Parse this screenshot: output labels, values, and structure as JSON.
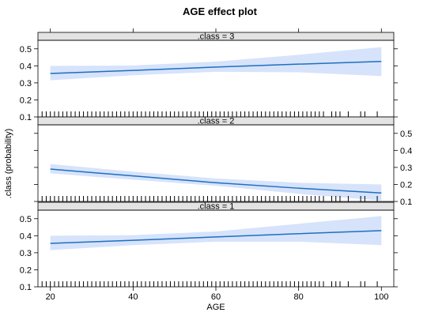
{
  "chart_data": {
    "type": "line",
    "title": "AGE effect plot",
    "xlabel": "AGE",
    "ylabel": ".class (probability)",
    "xlim": [
      17,
      103
    ],
    "xticks": [
      20,
      40,
      60,
      80,
      100
    ],
    "grid": false,
    "panels": [
      {
        "label": ".class = 3",
        "ylim": [
          0.1,
          0.55
        ],
        "yticks": [
          0.1,
          0.2,
          0.3,
          0.4,
          0.5
        ],
        "yaxis_side": "left",
        "x": [
          20,
          40,
          60,
          80,
          100
        ],
        "fit": [
          0.355,
          0.373,
          0.393,
          0.41,
          0.426
        ],
        "lower": [
          0.315,
          0.345,
          0.365,
          0.362,
          0.34
        ],
        "upper": [
          0.4,
          0.402,
          0.425,
          0.465,
          0.51
        ]
      },
      {
        "label": ".class = 2",
        "ylim": [
          0.1,
          0.55
        ],
        "yticks": [
          0.1,
          0.2,
          0.3,
          0.4,
          0.5
        ],
        "yaxis_side": "right",
        "x": [
          20,
          40,
          60,
          80,
          100
        ],
        "fit": [
          0.29,
          0.25,
          0.21,
          0.178,
          0.15
        ],
        "lower": [
          0.265,
          0.228,
          0.192,
          0.145,
          0.105
        ],
        "upper": [
          0.32,
          0.275,
          0.235,
          0.21,
          0.2
        ]
      },
      {
        "label": ".class = 1",
        "ylim": [
          0.1,
          0.55
        ],
        "yticks": [
          0.1,
          0.2,
          0.3,
          0.4,
          0.5
        ],
        "yaxis_side": "left",
        "x": [
          20,
          40,
          60,
          80,
          100
        ],
        "fit": [
          0.355,
          0.373,
          0.393,
          0.412,
          0.43
        ],
        "lower": [
          0.315,
          0.345,
          0.365,
          0.365,
          0.345
        ],
        "upper": [
          0.4,
          0.403,
          0.425,
          0.47,
          0.515
        ]
      }
    ],
    "rug_ages": [
      18,
      19,
      20,
      21,
      22,
      23,
      24,
      25,
      26,
      27,
      28,
      29,
      30,
      31,
      32,
      33,
      34,
      35,
      36,
      37,
      38,
      39,
      40,
      41,
      42,
      43,
      44,
      45,
      46,
      47,
      48,
      49,
      50,
      51,
      52,
      53,
      54,
      55,
      56,
      57,
      58,
      59,
      60,
      61,
      62,
      63,
      64,
      65,
      66,
      67,
      68,
      69,
      70,
      71,
      72,
      73,
      74,
      75,
      76,
      77,
      78,
      79,
      80,
      81,
      82,
      83,
      84,
      85,
      86,
      88,
      89,
      90,
      92,
      95,
      96,
      99
    ],
    "colors": {
      "line": "#1f6fbf",
      "band": "#d6e3fb",
      "strip": "#e3e3e3",
      "frame": "#000000"
    }
  }
}
